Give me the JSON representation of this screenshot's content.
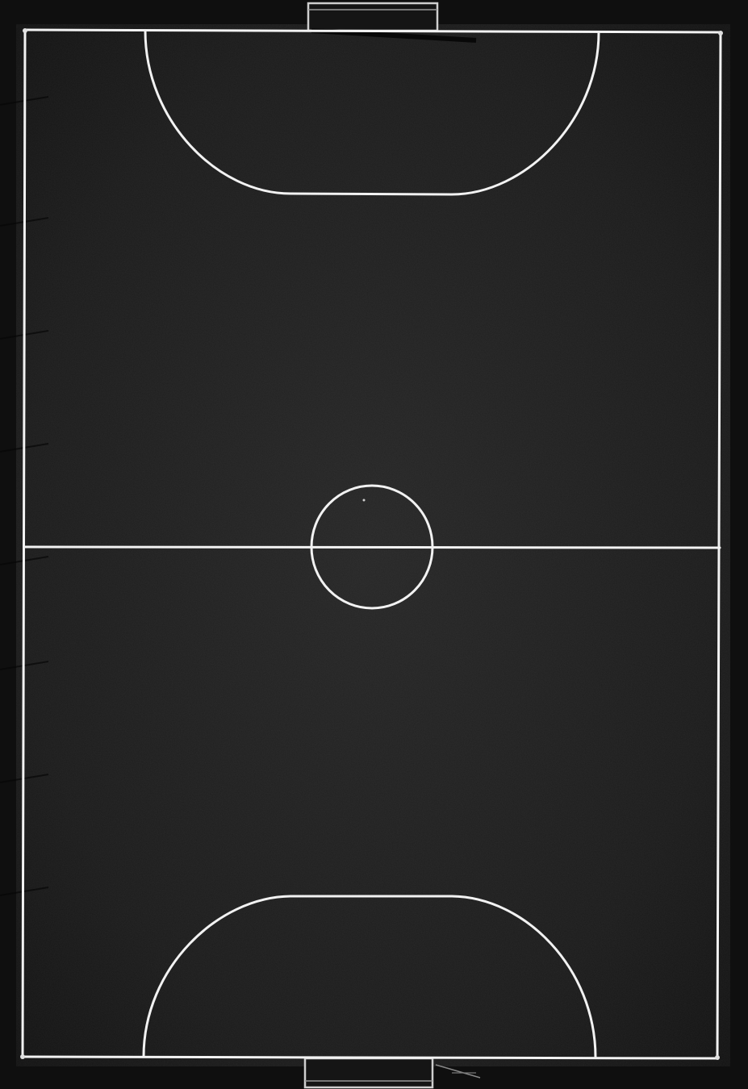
{
  "scene": {
    "subject": "futsal-court-aerial-view",
    "orientation": "vertical",
    "colors": {
      "surface": "#1a1a1a",
      "surround": "#0f0f0f",
      "lines": "#f2f2f2",
      "goal_frame": "#d0d0d0",
      "shadow": "#050505"
    },
    "features": [
      "boundary-lines",
      "halfway-line",
      "center-circle",
      "penalty-areas",
      "goals"
    ]
  }
}
